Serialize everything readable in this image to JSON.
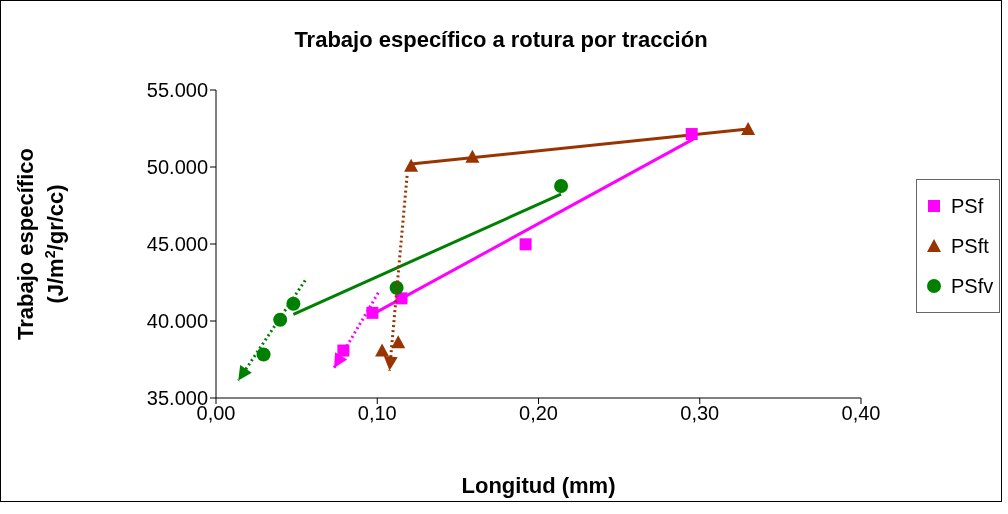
{
  "chart_data": {
    "type": "scatter",
    "title": "Trabajo específico a rotura por tracción",
    "xlabel": "Longitud (mm)",
    "ylabel": "Trabajo específico\n(J/m$^{2}$/gr/cc)",
    "xlim": [
      0,
      0.4
    ],
    "xticks": [
      {
        "value": 0,
        "label": "0,00"
      },
      {
        "value": 0.1,
        "label": "0,10"
      },
      {
        "value": 0.2,
        "label": "0,20"
      },
      {
        "value": 0.3,
        "label": "0,30"
      },
      {
        "value": 0.4,
        "label": "0,40"
      }
    ],
    "ylim": [
      35000,
      55000
    ],
    "yticks": [
      {
        "value": 35000,
        "label": "35.000"
      },
      {
        "value": 40000,
        "label": "40.000"
      },
      {
        "value": 45000,
        "label": "45.000"
      },
      {
        "value": 50000,
        "label": "50.000"
      },
      {
        "value": 55000,
        "label": "55.000"
      }
    ],
    "grid": false,
    "legend": "right",
    "series": [
      {
        "type": "line",
        "color": "#ff00ff",
        "line_style": "solid",
        "marker": "none",
        "x": [
          0.097,
          0.296
        ],
        "values": [
          40430,
          51810
        ]
      },
      {
        "type": "line",
        "color": "#ff00ff",
        "line_style": "dotted",
        "marker": "none",
        "x": [
          0.1006,
          0.0732
        ],
        "values": [
          41830,
          36950
        ]
      },
      {
        "type": "line",
        "color": "#993300",
        "line_style": "solid",
        "marker": "none",
        "x": [
          0.121,
          0.33
        ],
        "values": [
          50190,
          52460
        ]
      },
      {
        "type": "line",
        "color": "#993300",
        "line_style": "dotted",
        "marker": "none",
        "x": [
          0.1185,
          0.1076
        ],
        "values": [
          49430,
          36780
        ]
      },
      {
        "type": "line",
        "color": "#008000",
        "line_style": "solid",
        "marker": "none",
        "x": [
          0.048,
          0.214
        ],
        "values": [
          40430,
          48240
        ]
      },
      {
        "type": "line",
        "color": "#008000",
        "line_style": "dotted",
        "marker": "none",
        "x": [
          0.0553,
          0.0138
        ],
        "values": [
          42640,
          36130
        ]
      },
      {
        "name": "PSf",
        "color": "#ff00ff",
        "marker": "square",
        "x": [
          0.079,
          0.097,
          0.115,
          0.192,
          0.295
        ],
        "values": [
          38080,
          40530,
          41470,
          44980,
          52140
        ]
      },
      {
        "name": "PSft",
        "color": "#993300",
        "marker": "triangle",
        "x": [
          0.103,
          0.113,
          0.121,
          0.159,
          0.33
        ],
        "values": [
          38080,
          38620,
          50080,
          50660,
          52460
        ]
      },
      {
        "name": "PSfv",
        "color": "#008000",
        "marker": "circle",
        "x": [
          0.0295,
          0.0398,
          0.048,
          0.112,
          0.214
        ],
        "values": [
          37820,
          40080,
          41120,
          42160,
          48770
        ]
      }
    ]
  }
}
